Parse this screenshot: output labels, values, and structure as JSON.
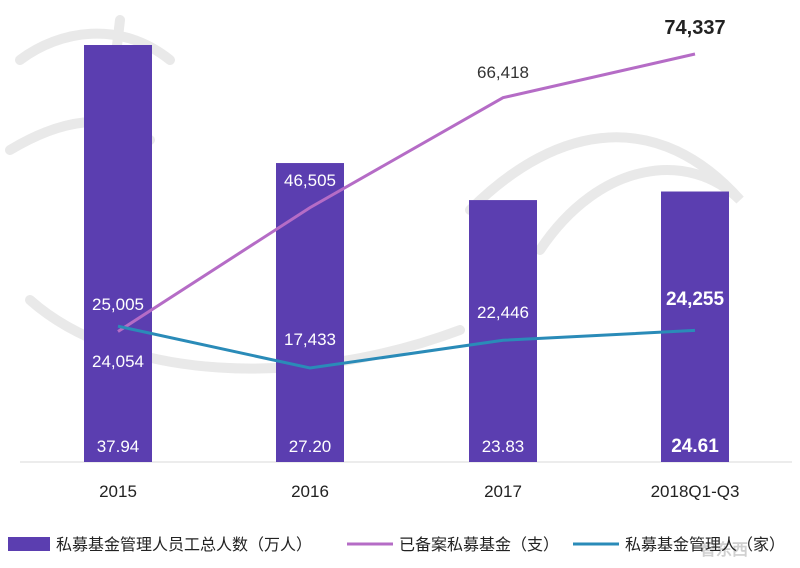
{
  "chart_data": {
    "type": "bar+line",
    "categories": [
      "2015",
      "2016",
      "2017",
      "2018Q1-Q3"
    ],
    "series": [
      {
        "name": "私募基金管理人员工总人数（万人）",
        "kind": "bar",
        "color": "#5b3eb0",
        "values": [
          37.94,
          27.2,
          23.83,
          24.61
        ],
        "labels": [
          "37.94",
          "27.20",
          "23.83",
          "24.61"
        ]
      },
      {
        "name": "已备案私募基金（支）",
        "kind": "line",
        "color": "#b56cc6",
        "values": [
          24054,
          46505,
          66418,
          74337
        ],
        "labels": [
          "24,054",
          "46,505",
          "66,418",
          "74,337"
        ]
      },
      {
        "name": "私募基金管理人（家）",
        "kind": "line",
        "color": "#2a8bb8",
        "values": [
          25005,
          17433,
          22446,
          24255
        ],
        "labels": [
          "25,005",
          "17,433",
          "22,446",
          "24,255"
        ]
      }
    ],
    "bar_axis_range": [
      0,
      55
    ],
    "line_axis_range": [
      0,
      80000
    ],
    "legend_position": "bottom",
    "grid": false
  },
  "watermark": {
    "logo_text": "智东西"
  }
}
